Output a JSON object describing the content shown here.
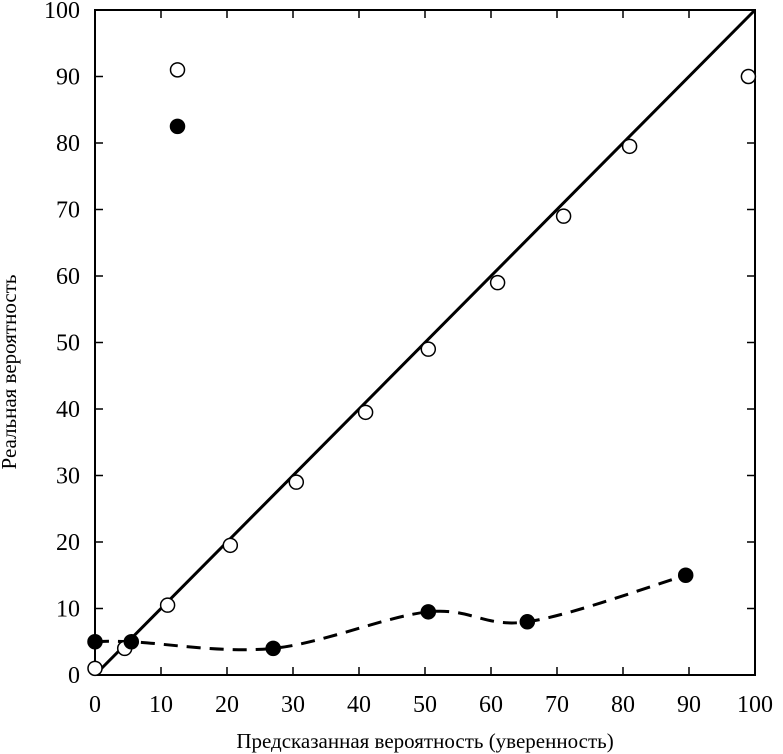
{
  "chart_data": {
    "type": "scatter",
    "title": "",
    "xlabel": "Предсказанная вероятность (уверенность)",
    "ylabel": "Реальная вероятность",
    "xlim": [
      0,
      100
    ],
    "ylim": [
      0,
      100
    ],
    "x_ticks": [
      "0",
      "10",
      "20",
      "30",
      "40",
      "50",
      "60",
      "70",
      "80",
      "90",
      "100"
    ],
    "y_ticks": [
      "0",
      "10",
      "20",
      "30",
      "40",
      "50",
      "60",
      "70",
      "80",
      "90",
      "100"
    ],
    "grid": false,
    "legend": false,
    "reference_line": {
      "x": [
        0,
        100
      ],
      "y": [
        0,
        100
      ],
      "style": "solid"
    },
    "series": [
      {
        "marker": "open-circle",
        "x": [
          0,
          4.5,
          11,
          12.5,
          20.5,
          30.5,
          41,
          50.5,
          61,
          71,
          81,
          99
        ],
        "y": [
          1,
          4,
          10.5,
          91,
          19.5,
          29,
          39.5,
          49,
          59,
          69,
          79.5,
          90
        ]
      },
      {
        "marker": "filled-circle",
        "x": [
          0,
          5.5,
          12.5,
          27,
          50.5,
          65.5,
          89.5
        ],
        "y": [
          5,
          5,
          82.5,
          4,
          9.5,
          8,
          15
        ]
      }
    ],
    "trend_line": {
      "style": "dashed",
      "x": [
        0,
        5.5,
        27,
        50.5,
        65.5,
        89.5
      ],
      "y": [
        5,
        5,
        4,
        9.5,
        8,
        15
      ]
    }
  }
}
